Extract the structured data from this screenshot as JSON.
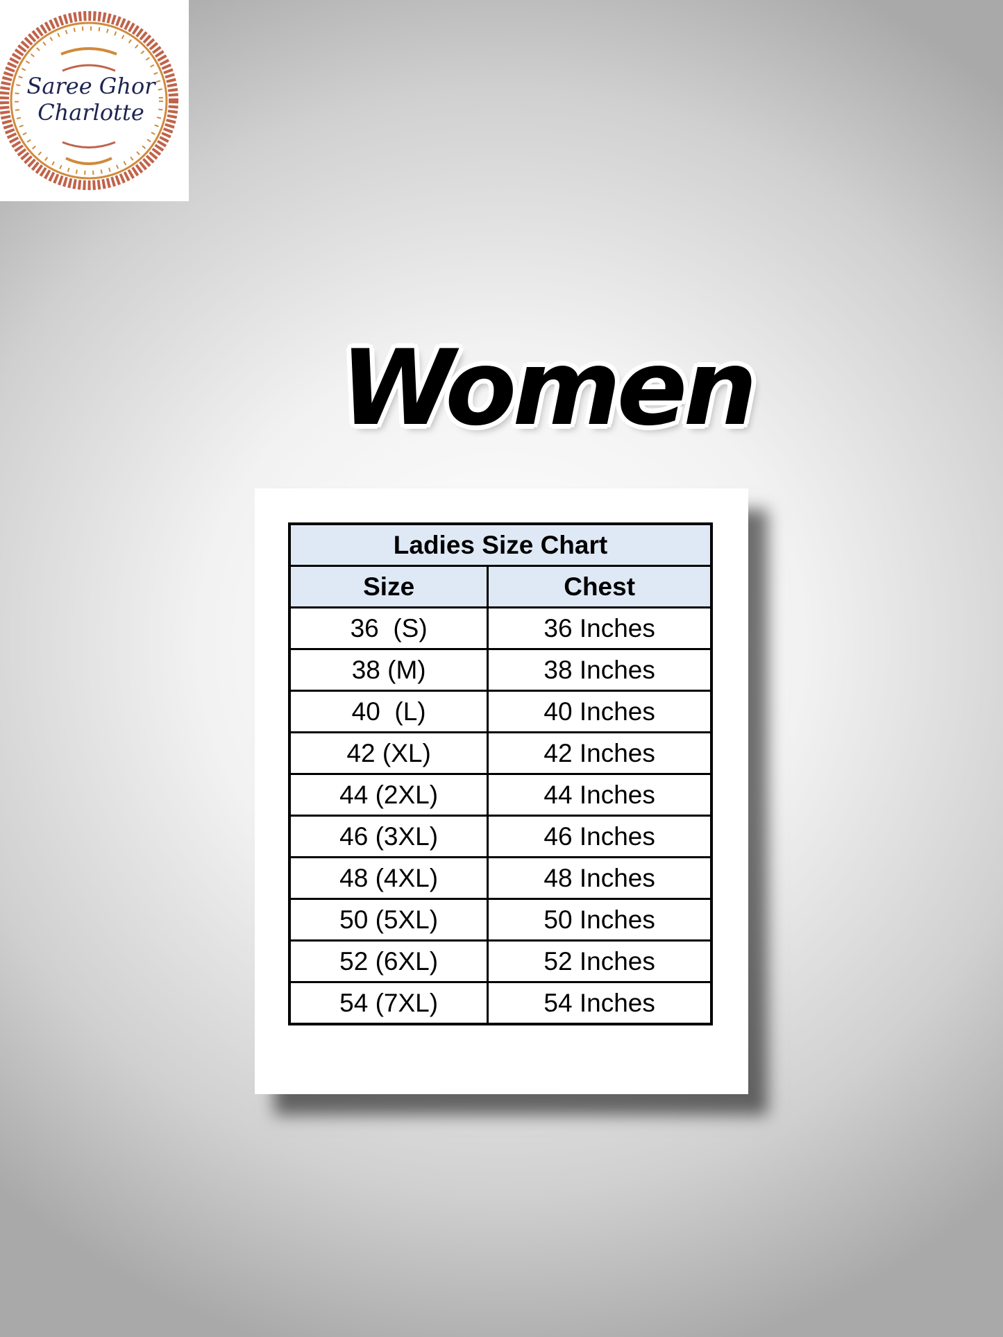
{
  "logo": {
    "text_line1": "Saree Ghor",
    "text_line2": "Charlotte",
    "colors": {
      "ornament": "#c0634a",
      "gold": "#d08a3c",
      "text": "#1d2450"
    }
  },
  "heading": "Women",
  "table": {
    "title": "Ladies Size Chart",
    "columns": [
      "Size",
      "Chest"
    ],
    "rows": [
      [
        "36  (S)",
        "36 Inches"
      ],
      [
        "38 (M)",
        "38 Inches"
      ],
      [
        "40  (L)",
        "40 Inches"
      ],
      [
        "42 (XL)",
        "42 Inches"
      ],
      [
        "44 (2XL)",
        "44 Inches"
      ],
      [
        "46 (3XL)",
        "46 Inches"
      ],
      [
        "48 (4XL)",
        "48 Inches"
      ],
      [
        "50 (5XL)",
        "50 Inches"
      ],
      [
        "52 (6XL)",
        "52 Inches"
      ],
      [
        "54 (7XL)",
        "54 Inches"
      ]
    ],
    "header_bg": "#dfe9f6"
  }
}
